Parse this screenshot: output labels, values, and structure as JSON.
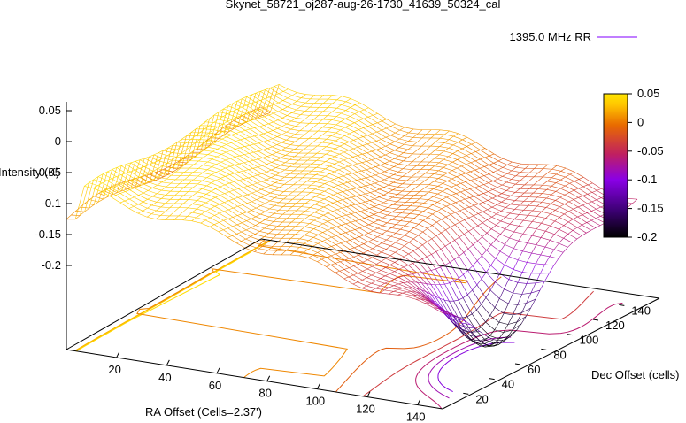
{
  "chart_data": {
    "type": "surface3d",
    "title": "Skynet_58721_oj287-aug-26-1730_41639_50324_cal",
    "xlabel": "RA Offset (Cells=2.37')",
    "ylabel": "Dec Offset (cells)",
    "zlabel": "Intensity (K)",
    "legend": {
      "label": "1395.0 MHz RR",
      "position": "top-right",
      "color": "#9b30ff"
    },
    "x_ticks": [
      "20",
      "40",
      "60",
      "80",
      "100",
      "120",
      "140"
    ],
    "y_ticks": [
      "20",
      "40",
      "60",
      "80",
      "100",
      "120",
      "140"
    ],
    "z_ticks": [
      "0.05",
      "0",
      "-0.05",
      "-0.1",
      "-0.15",
      "-0.2"
    ],
    "colorbar_ticks": [
      "0.05",
      "0",
      "-0.05",
      "-0.1",
      "-0.15",
      "-0.2"
    ],
    "xlim": [
      0,
      150
    ],
    "ylim": [
      0,
      150
    ],
    "zlim": [
      -0.25,
      0.05
    ],
    "colorbar_range": [
      -0.2,
      0.05
    ],
    "palette": [
      "#000000",
      "#3a0070",
      "#8a00e6",
      "#c02060",
      "#e86a00",
      "#ffc400",
      "#ffe600"
    ],
    "grid": false,
    "base_contours": true
  }
}
